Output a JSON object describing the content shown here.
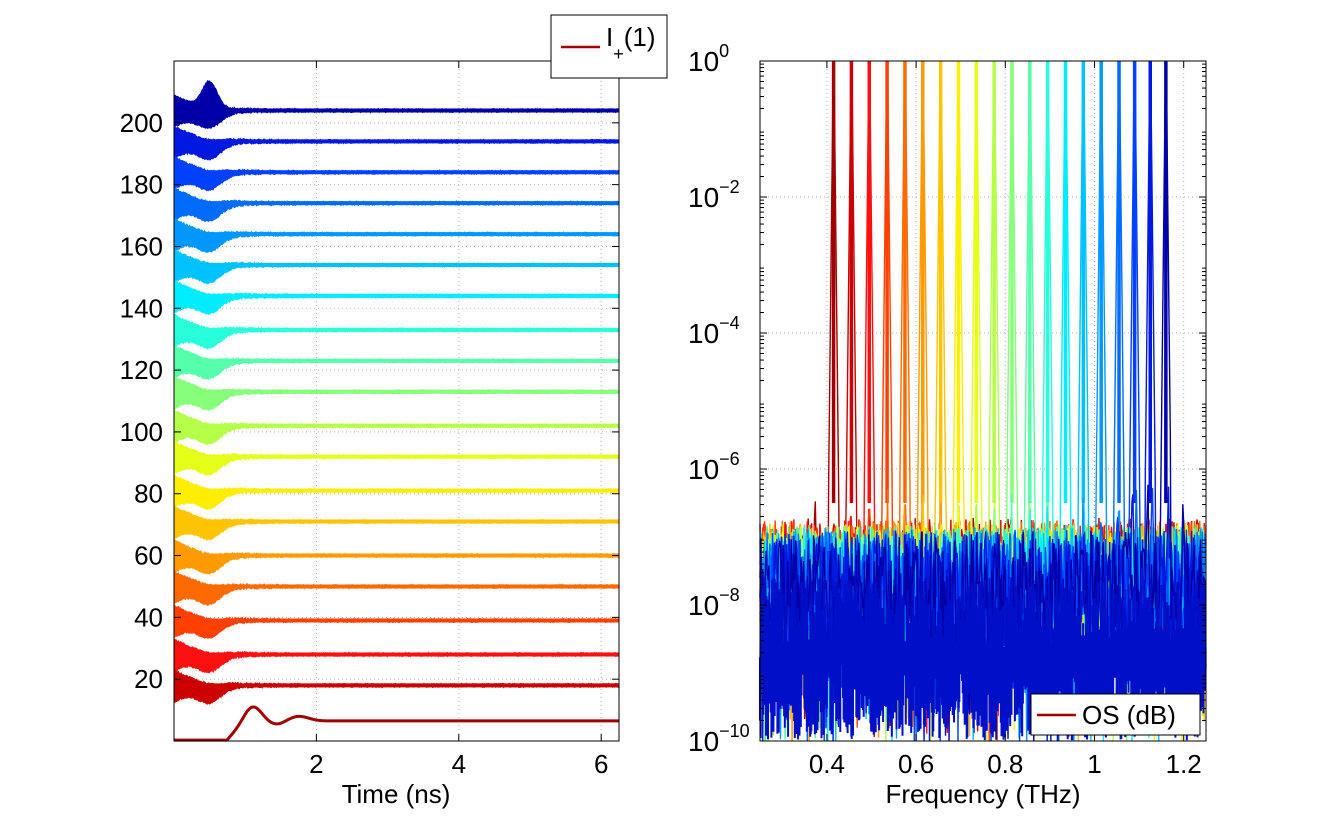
{
  "figure": {
    "background": "#ffffff"
  },
  "chart_data": [
    {
      "type": "line",
      "panel": "left",
      "title": "",
      "xlabel": "Time (ns)",
      "ylabel": "",
      "xlim": [
        0,
        6.25
      ],
      "ylim": [
        0,
        220
      ],
      "xticks": [
        2,
        4,
        6
      ],
      "xtick_labels": [
        "2",
        "4",
        "6"
      ],
      "yticks": [
        20,
        40,
        60,
        80,
        100,
        120,
        140,
        160,
        180,
        200
      ],
      "ytick_labels": [
        "20",
        "40",
        "60",
        "80",
        "100",
        "120",
        "140",
        "160",
        "180",
        "200"
      ],
      "grid": true,
      "legend": {
        "position": "top-right-outside",
        "entries": [
          {
            "label": "I",
            "subscript": "+",
            "suffix": "(1)",
            "color": "#a00000"
          }
        ]
      },
      "reference_trace": {
        "name": "I+(1)",
        "color": "#a00000",
        "baseline": 6.5,
        "pulse_center_ns": 1.1,
        "pulse_peak": 12.5
      },
      "offset_traces": [
        {
          "offset": 18,
          "color": "#cc0000"
        },
        {
          "offset": 28,
          "color": "#ff1010"
        },
        {
          "offset": 39,
          "color": "#ff4000"
        },
        {
          "offset": 50,
          "color": "#ff6a00"
        },
        {
          "offset": 60,
          "color": "#ff9a00"
        },
        {
          "offset": 71,
          "color": "#ffc400"
        },
        {
          "offset": 81,
          "color": "#ffee00"
        },
        {
          "offset": 92,
          "color": "#e6ff19"
        },
        {
          "offset": 102,
          "color": "#b6ff48"
        },
        {
          "offset": 113,
          "color": "#86ff7a"
        },
        {
          "offset": 123,
          "color": "#56ffaa"
        },
        {
          "offset": 133,
          "color": "#26ffda"
        },
        {
          "offset": 144,
          "color": "#00ecff"
        },
        {
          "offset": 154,
          "color": "#00c2ff"
        },
        {
          "offset": 164,
          "color": "#0098ff"
        },
        {
          "offset": 174,
          "color": "#006cff"
        },
        {
          "offset": 184,
          "color": "#0040ff"
        },
        {
          "offset": 194,
          "color": "#0018e0"
        },
        {
          "offset": 204,
          "color": "#0000a8"
        }
      ]
    },
    {
      "type": "line",
      "panel": "right",
      "title": "",
      "xlabel": "Frequency (THz)",
      "ylabel": "",
      "yscale": "log",
      "xlim": [
        0.25,
        1.25
      ],
      "ylim_exp": [
        -10,
        0
      ],
      "xticks": [
        0.4,
        0.6,
        0.8,
        1.0,
        1.2
      ],
      "xtick_labels": [
        "0.4",
        "0.6",
        "0.8",
        "1",
        "1.2"
      ],
      "yticks_exp": [
        -10,
        -8,
        -6,
        -4,
        -2,
        0
      ],
      "ytick_base": "10",
      "ytick_exponents": [
        "−10",
        "−8",
        "−6",
        "−4",
        "−2",
        "0"
      ],
      "grid": true,
      "legend": {
        "position": "bottom-right",
        "entries": [
          {
            "label": "OS (dB)",
            "color": "#a00000"
          }
        ]
      },
      "noise_floor_exp": -8.5,
      "spectral_lines": [
        {
          "freq": 0.415,
          "color": "#a00000"
        },
        {
          "freq": 0.455,
          "color": "#cc0000"
        },
        {
          "freq": 0.495,
          "color": "#ff1010"
        },
        {
          "freq": 0.535,
          "color": "#ff4000"
        },
        {
          "freq": 0.575,
          "color": "#ff6a00"
        },
        {
          "freq": 0.615,
          "color": "#ff9a00"
        },
        {
          "freq": 0.655,
          "color": "#ffc400"
        },
        {
          "freq": 0.695,
          "color": "#ffee00"
        },
        {
          "freq": 0.735,
          "color": "#e6ff19"
        },
        {
          "freq": 0.775,
          "color": "#b6ff48"
        },
        {
          "freq": 0.815,
          "color": "#86ff7a"
        },
        {
          "freq": 0.855,
          "color": "#56ffaa"
        },
        {
          "freq": 0.895,
          "color": "#26ffda"
        },
        {
          "freq": 0.935,
          "color": "#00ecff"
        },
        {
          "freq": 0.975,
          "color": "#00c2ff"
        },
        {
          "freq": 1.015,
          "color": "#0098ff"
        },
        {
          "freq": 1.055,
          "color": "#006cff"
        },
        {
          "freq": 1.09,
          "color": "#0040ff"
        },
        {
          "freq": 1.125,
          "color": "#0018e0"
        },
        {
          "freq": 1.16,
          "color": "#0000a8"
        }
      ]
    }
  ]
}
